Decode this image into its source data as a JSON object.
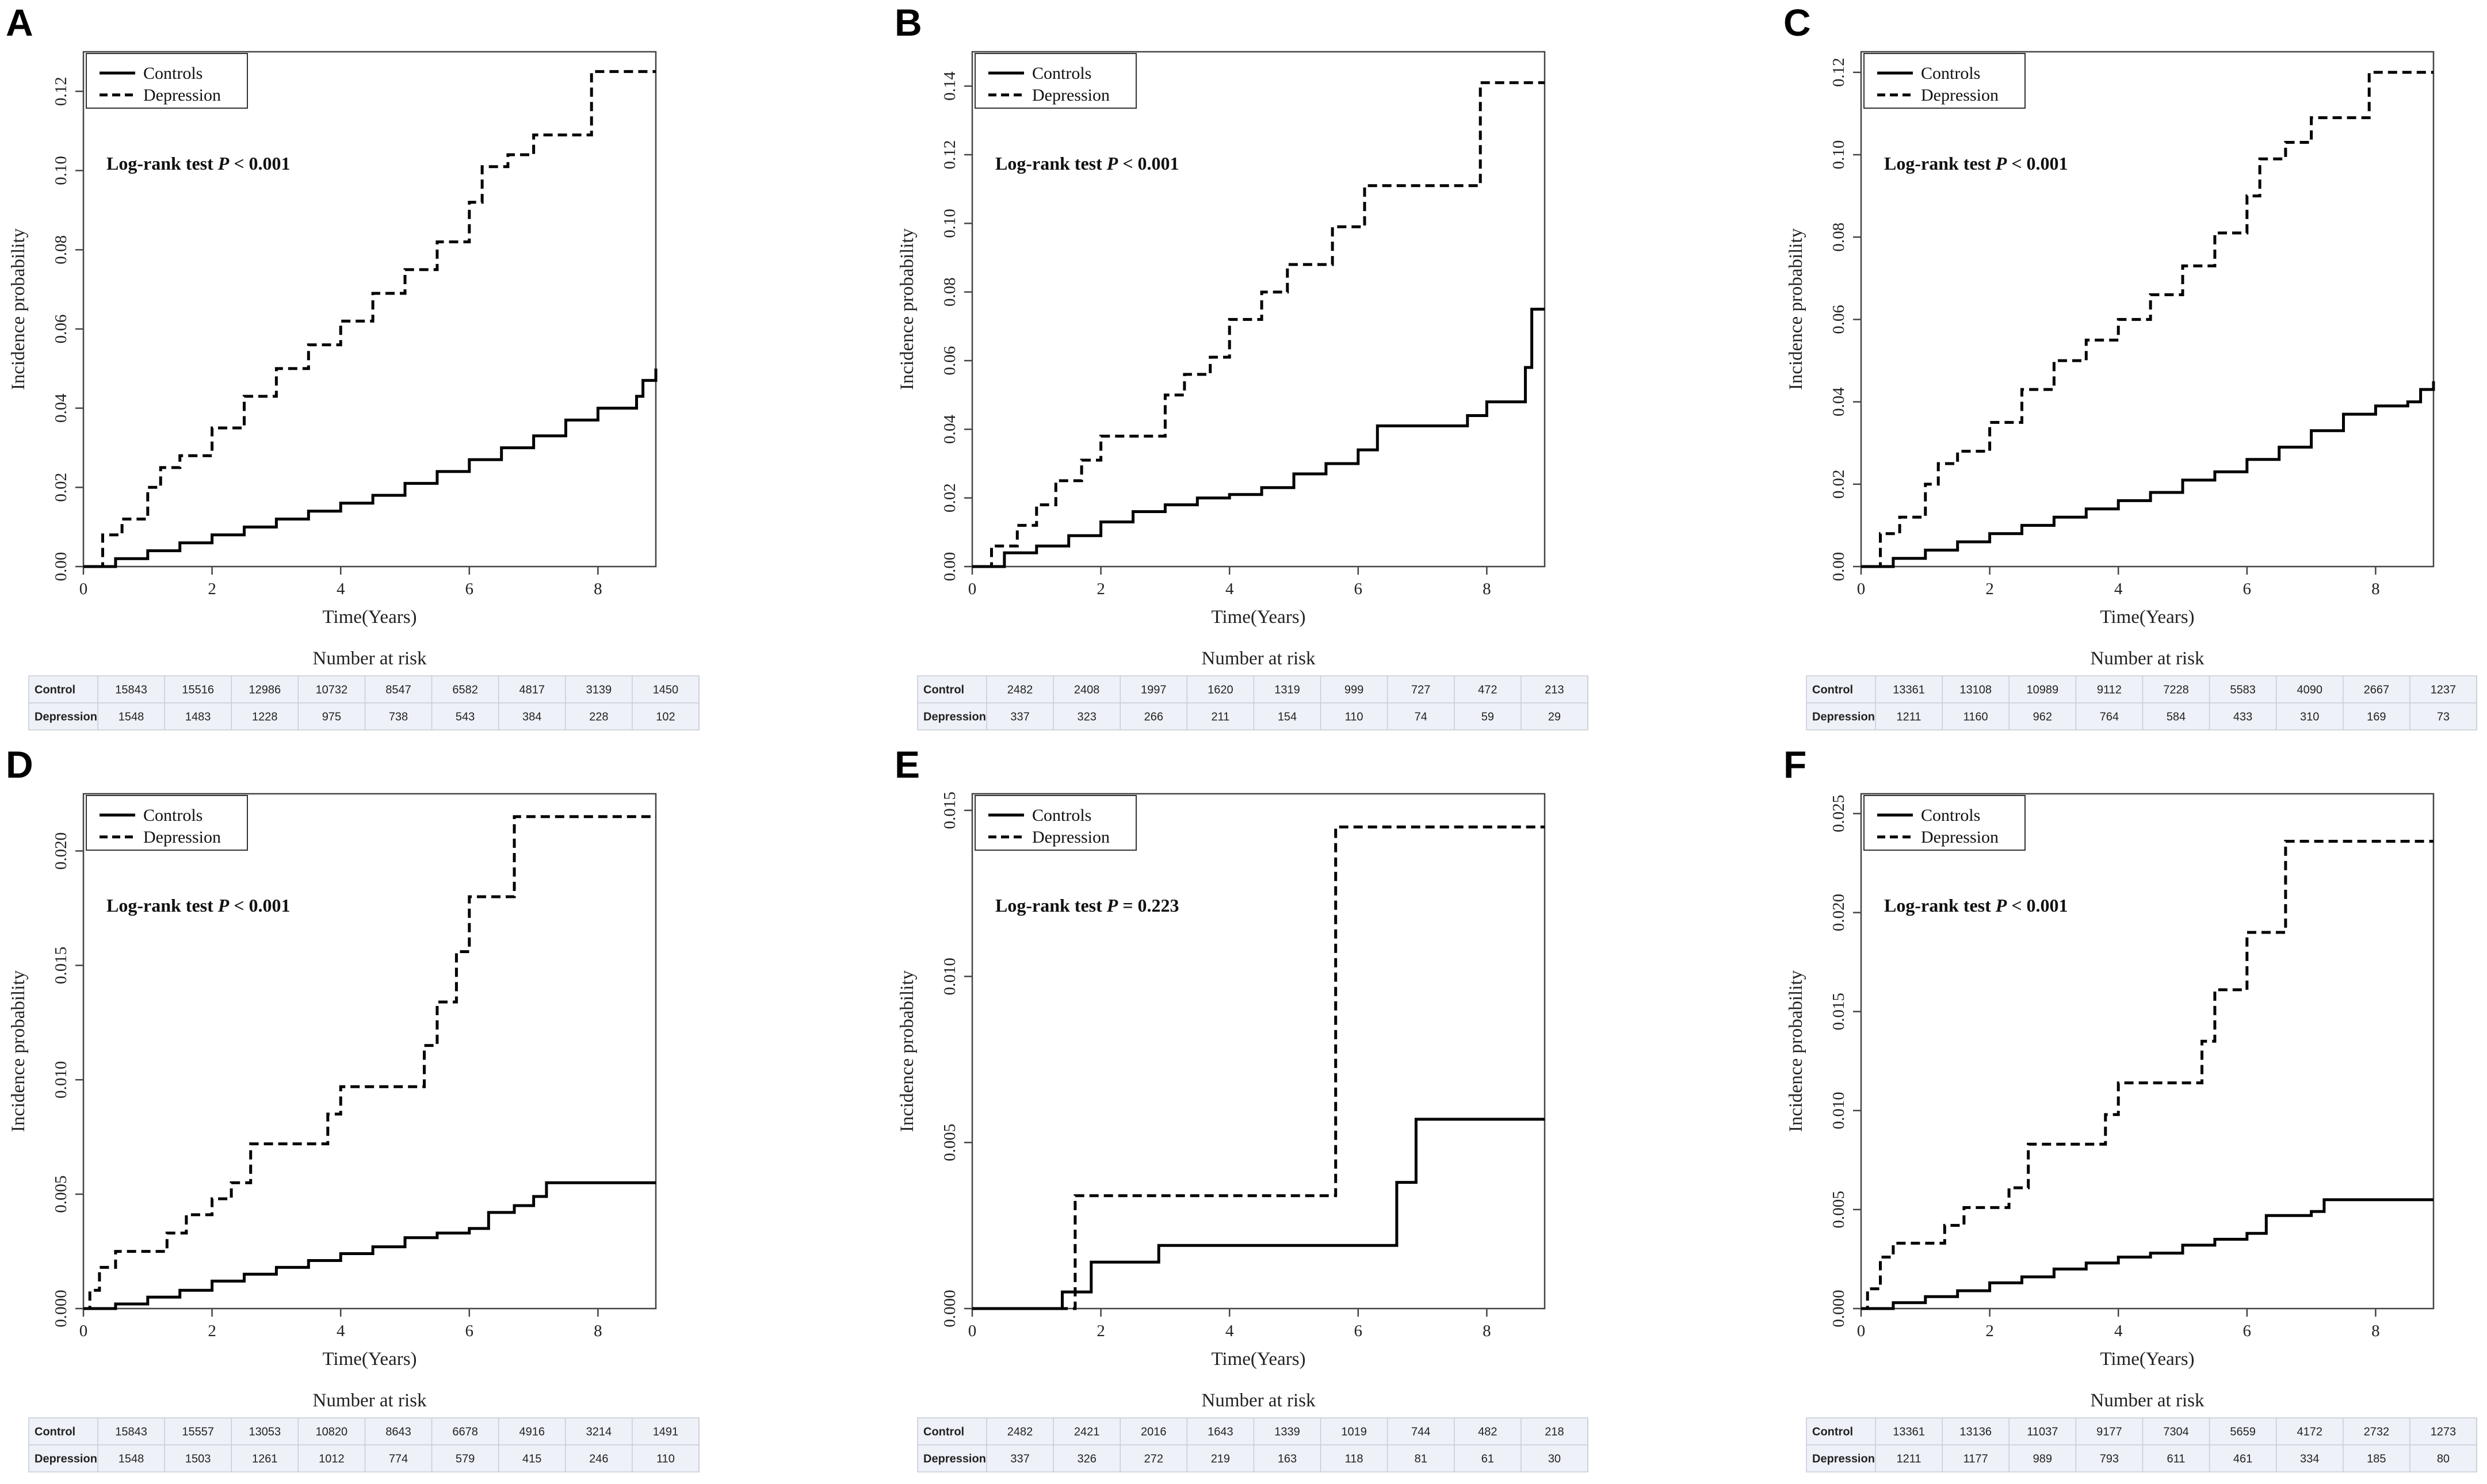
{
  "figure_labels": [
    "A",
    "B",
    "C",
    "D",
    "E",
    "F"
  ],
  "common": {
    "legend": {
      "controls": "Controls",
      "depression": "Depression"
    },
    "xlabel": "Time(Years)",
    "ylabel": "Incidence probability",
    "risk_title": "Number at risk",
    "risk_rows": [
      "Control",
      "Depression"
    ],
    "logrank_prefix": "Log-rank test ",
    "p_symbol": "P"
  },
  "chart_data": [
    {
      "panel": "A",
      "type": "line",
      "title": "",
      "xlabel": "Time(Years)",
      "ylabel": "Incidence probability",
      "xlim": [
        0,
        8.9
      ],
      "ylim": [
        0,
        0.13
      ],
      "xticks": [
        0,
        2,
        4,
        6,
        8
      ],
      "yticks": [
        0.0,
        0.02,
        0.04,
        0.06,
        0.08,
        0.1,
        0.12
      ],
      "ytick_labels": [
        "0.00",
        "0.02",
        "0.04",
        "0.06",
        "0.08",
        "0.10",
        "0.12"
      ],
      "pvalue": "< 0.001",
      "series": [
        {
          "name": "Controls",
          "style": "solid",
          "x": [
            0,
            0.5,
            1,
            1.5,
            2,
            2.5,
            3,
            3.5,
            4,
            4.5,
            5,
            5.5,
            6,
            6.5,
            7,
            7.5,
            8,
            8.5,
            8.6,
            8.7,
            8.9
          ],
          "y": [
            0,
            0.002,
            0.004,
            0.006,
            0.008,
            0.01,
            0.012,
            0.014,
            0.016,
            0.018,
            0.021,
            0.024,
            0.027,
            0.03,
            0.033,
            0.037,
            0.04,
            0.04,
            0.043,
            0.047,
            0.05
          ]
        },
        {
          "name": "Depression",
          "style": "dashed",
          "x": [
            0,
            0.3,
            0.6,
            1,
            1.2,
            1.5,
            2,
            2.5,
            3,
            3.5,
            4,
            4.5,
            5,
            5.5,
            6,
            6.2,
            6.6,
            7,
            7.5,
            7.9,
            8.9
          ],
          "y": [
            0,
            0.008,
            0.012,
            0.02,
            0.025,
            0.028,
            0.035,
            0.043,
            0.05,
            0.056,
            0.062,
            0.069,
            0.075,
            0.082,
            0.092,
            0.101,
            0.104,
            0.109,
            0.109,
            0.125,
            0.125
          ]
        }
      ],
      "risk": {
        "Control": [
          "15843",
          "15516",
          "12986",
          "10732",
          "8547",
          "6582",
          "4817",
          "3139",
          "1450"
        ],
        "Depression": [
          "1548",
          "1483",
          "1228",
          "975",
          "738",
          "543",
          "384",
          "228",
          "102"
        ]
      }
    },
    {
      "panel": "B",
      "type": "line",
      "title": "",
      "xlabel": "Time(Years)",
      "ylabel": "Incidence probability",
      "xlim": [
        0,
        8.9
      ],
      "ylim": [
        0,
        0.15
      ],
      "xticks": [
        0,
        2,
        4,
        6,
        8
      ],
      "yticks": [
        0.0,
        0.02,
        0.04,
        0.06,
        0.08,
        0.1,
        0.12,
        0.14
      ],
      "ytick_labels": [
        "0.00",
        "0.02",
        "0.04",
        "0.06",
        "0.08",
        "0.10",
        "0.12",
        "0.14"
      ],
      "pvalue": "< 0.001",
      "series": [
        {
          "name": "Controls",
          "style": "solid",
          "x": [
            0,
            0.5,
            1,
            1.5,
            2,
            2.5,
            3,
            3.5,
            4,
            4.5,
            5,
            5.5,
            6,
            6.3,
            7,
            7.7,
            8,
            8.5,
            8.6,
            8.7,
            8.9
          ],
          "y": [
            0,
            0.004,
            0.006,
            0.009,
            0.013,
            0.016,
            0.018,
            0.02,
            0.021,
            0.023,
            0.027,
            0.03,
            0.034,
            0.041,
            0.041,
            0.044,
            0.048,
            0.048,
            0.058,
            0.075,
            0.075
          ]
        },
        {
          "name": "Depression",
          "style": "dashed",
          "x": [
            0,
            0.3,
            0.7,
            1,
            1.3,
            1.7,
            2,
            2.5,
            3,
            3.3,
            3.7,
            4,
            4.5,
            4.9,
            5.6,
            6.1,
            7,
            7.9,
            8.9
          ],
          "y": [
            0,
            0.006,
            0.012,
            0.018,
            0.025,
            0.031,
            0.038,
            0.038,
            0.05,
            0.056,
            0.061,
            0.072,
            0.08,
            0.088,
            0.099,
            0.111,
            0.111,
            0.141,
            0.141
          ]
        }
      ],
      "risk": {
        "Control": [
          "2482",
          "2408",
          "1997",
          "1620",
          "1319",
          "999",
          "727",
          "472",
          "213"
        ],
        "Depression": [
          "337",
          "323",
          "266",
          "211",
          "154",
          "110",
          "74",
          "59",
          "29"
        ]
      }
    },
    {
      "panel": "C",
      "type": "line",
      "title": "",
      "xlabel": "Time(Years)",
      "ylabel": "Incidence probability",
      "xlim": [
        0,
        8.9
      ],
      "ylim": [
        0,
        0.125
      ],
      "xticks": [
        0,
        2,
        4,
        6,
        8
      ],
      "yticks": [
        0.0,
        0.02,
        0.04,
        0.06,
        0.08,
        0.1,
        0.12
      ],
      "ytick_labels": [
        "0.00",
        "0.02",
        "0.04",
        "0.06",
        "0.08",
        "0.10",
        "0.12"
      ],
      "pvalue": "< 0.001",
      "series": [
        {
          "name": "Controls",
          "style": "solid",
          "x": [
            0,
            0.5,
            1,
            1.5,
            2,
            2.5,
            3,
            3.5,
            4,
            4.5,
            5,
            5.5,
            6,
            6.5,
            7,
            7.5,
            8,
            8.5,
            8.7,
            8.9
          ],
          "y": [
            0,
            0.002,
            0.004,
            0.006,
            0.008,
            0.01,
            0.012,
            0.014,
            0.016,
            0.018,
            0.021,
            0.023,
            0.026,
            0.029,
            0.033,
            0.037,
            0.039,
            0.04,
            0.043,
            0.045
          ]
        },
        {
          "name": "Depression",
          "style": "dashed",
          "x": [
            0,
            0.3,
            0.6,
            1,
            1.2,
            1.5,
            2,
            2.5,
            3,
            3.5,
            4,
            4.5,
            5,
            5.5,
            6,
            6.2,
            6.6,
            7,
            7.5,
            7.9,
            8.9
          ],
          "y": [
            0,
            0.008,
            0.012,
            0.02,
            0.025,
            0.028,
            0.035,
            0.043,
            0.05,
            0.055,
            0.06,
            0.066,
            0.073,
            0.081,
            0.09,
            0.099,
            0.103,
            0.109,
            0.109,
            0.12,
            0.12
          ]
        }
      ],
      "risk": {
        "Control": [
          "13361",
          "13108",
          "10989",
          "9112",
          "7228",
          "5583",
          "4090",
          "2667",
          "1237"
        ],
        "Depression": [
          "1211",
          "1160",
          "962",
          "764",
          "584",
          "433",
          "310",
          "169",
          "73"
        ]
      }
    },
    {
      "panel": "D",
      "type": "line",
      "title": "",
      "xlabel": "Time(Years)",
      "ylabel": "Incidence probability",
      "xlim": [
        0,
        8.9
      ],
      "ylim": [
        0,
        0.0225
      ],
      "xticks": [
        0,
        2,
        4,
        6,
        8
      ],
      "yticks": [
        0.0,
        0.005,
        0.01,
        0.015,
        0.02
      ],
      "ytick_labels": [
        "0.000",
        "0.005",
        "0.010",
        "0.015",
        "0.020"
      ],
      "pvalue": "< 0.001",
      "series": [
        {
          "name": "Controls",
          "style": "solid",
          "x": [
            0,
            0.5,
            1,
            1.5,
            2,
            2.5,
            3,
            3.5,
            4,
            4.5,
            5,
            5.5,
            6,
            6.3,
            6.7,
            7,
            7.2,
            8,
            8.9
          ],
          "y": [
            0,
            0.0002,
            0.0005,
            0.0008,
            0.0012,
            0.0015,
            0.0018,
            0.0021,
            0.0024,
            0.0027,
            0.0031,
            0.0033,
            0.0035,
            0.0042,
            0.0045,
            0.0049,
            0.0055,
            0.0055,
            0.0055
          ]
        },
        {
          "name": "Depression",
          "style": "dashed",
          "x": [
            0,
            0.1,
            0.25,
            0.5,
            1,
            1.3,
            1.6,
            2,
            2.3,
            2.6,
            3,
            3.8,
            4,
            5.3,
            5.5,
            5.8,
            6,
            6.7,
            7,
            8.9
          ],
          "y": [
            0,
            0.0008,
            0.0018,
            0.0025,
            0.0025,
            0.0033,
            0.0041,
            0.0048,
            0.0055,
            0.0072,
            0.0072,
            0.0085,
            0.0097,
            0.0115,
            0.0134,
            0.0156,
            0.018,
            0.0215,
            0.0215,
            0.0215
          ]
        }
      ],
      "risk": {
        "Control": [
          "15843",
          "15557",
          "13053",
          "10820",
          "8643",
          "6678",
          "4916",
          "3214",
          "1491"
        ],
        "Depression": [
          "1548",
          "1503",
          "1261",
          "1012",
          "774",
          "579",
          "415",
          "246",
          "110"
        ]
      }
    },
    {
      "panel": "E",
      "type": "line",
      "title": "",
      "xlabel": "Time(Years)",
      "ylabel": "Incidence probability",
      "xlim": [
        0,
        8.9
      ],
      "ylim": [
        0,
        0.0155
      ],
      "xticks": [
        0,
        2,
        4,
        6,
        8
      ],
      "yticks": [
        0.0,
        0.005,
        0.01,
        0.015
      ],
      "ytick_labels": [
        "0.000",
        "0.005",
        "0.010",
        "0.015"
      ],
      "pvalue": "= 0.223",
      "series": [
        {
          "name": "Controls",
          "style": "solid",
          "x": [
            0,
            1.4,
            1.85,
            2.9,
            4,
            6.6,
            6.9,
            8.9
          ],
          "y": [
            0,
            0.0005,
            0.0014,
            0.0019,
            0.0019,
            0.0038,
            0.0057,
            0.0057
          ]
        },
        {
          "name": "Depression",
          "style": "dashed",
          "x": [
            0,
            1.6,
            3,
            5.65,
            7,
            8.9
          ],
          "y": [
            0,
            0.0034,
            0.0034,
            0.0145,
            0.0145,
            0.0145
          ]
        }
      ],
      "risk": {
        "Control": [
          "2482",
          "2421",
          "2016",
          "1643",
          "1339",
          "1019",
          "744",
          "482",
          "218"
        ],
        "Depression": [
          "337",
          "326",
          "272",
          "219",
          "163",
          "118",
          "81",
          "61",
          "30"
        ]
      }
    },
    {
      "panel": "F",
      "type": "line",
      "title": "",
      "xlabel": "Time(Years)",
      "ylabel": "Incidence probability",
      "xlim": [
        0,
        8.9
      ],
      "ylim": [
        0,
        0.026
      ],
      "xticks": [
        0,
        2,
        4,
        6,
        8
      ],
      "yticks": [
        0.0,
        0.005,
        0.01,
        0.015,
        0.02,
        0.025
      ],
      "ytick_labels": [
        "0.000",
        "0.005",
        "0.010",
        "0.015",
        "0.020",
        "0.025"
      ],
      "pvalue": "< 0.001",
      "series": [
        {
          "name": "Controls",
          "style": "solid",
          "x": [
            0,
            0.5,
            1,
            1.5,
            2,
            2.5,
            3,
            3.5,
            4,
            4.5,
            5,
            5.5,
            6,
            6.3,
            7,
            7.2,
            8,
            8.9
          ],
          "y": [
            0,
            0.0003,
            0.0006,
            0.0009,
            0.0013,
            0.0016,
            0.002,
            0.0023,
            0.0026,
            0.0028,
            0.0032,
            0.0035,
            0.0038,
            0.0047,
            0.0049,
            0.0055,
            0.0055,
            0.0055
          ]
        },
        {
          "name": "Depression",
          "style": "dashed",
          "x": [
            0,
            0.1,
            0.3,
            0.5,
            1,
            1.3,
            1.6,
            2,
            2.3,
            2.6,
            3,
            3.8,
            4,
            5.3,
            5.5,
            5.8,
            6,
            6.6,
            7,
            8.9
          ],
          "y": [
            0,
            0.001,
            0.0026,
            0.0033,
            0.0033,
            0.0042,
            0.0051,
            0.0051,
            0.0061,
            0.0083,
            0.0083,
            0.0098,
            0.0114,
            0.0135,
            0.0161,
            0.0161,
            0.019,
            0.0236,
            0.0236,
            0.0236
          ]
        }
      ],
      "risk": {
        "Control": [
          "13361",
          "13136",
          "11037",
          "9177",
          "7304",
          "5659",
          "4172",
          "2732",
          "1273"
        ],
        "Depression": [
          "1211",
          "1177",
          "989",
          "793",
          "611",
          "461",
          "334",
          "185",
          "80"
        ]
      }
    }
  ]
}
